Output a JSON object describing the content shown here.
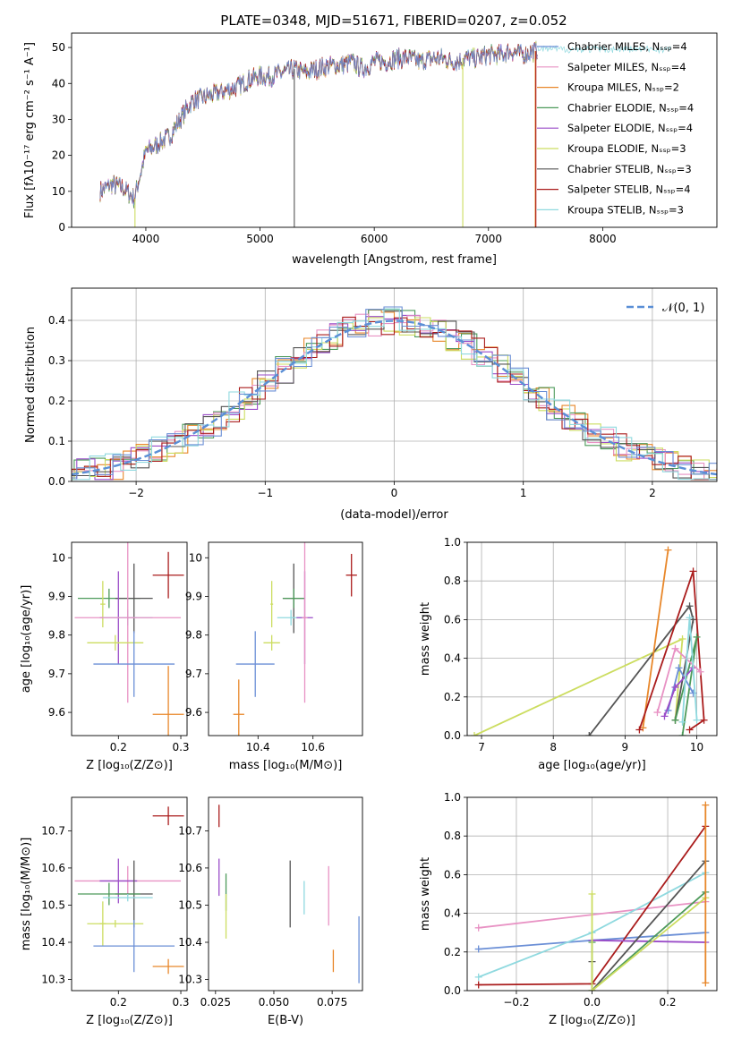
{
  "title": "PLATE=0348, MJD=51671, FIBERID=0207, z=0.052",
  "palette": {
    "c0": "#6b8fd6",
    "c1": "#e8872a",
    "c2": "#4d9a5a",
    "c3": "#9a4cc8",
    "c4": "#e892c4",
    "c5": "#ccdd60",
    "c6": "#555555",
    "c7": "#aa1c1c",
    "c8": "#8fd9df"
  },
  "chart_data": [
    {
      "id": "spectrum",
      "type": "line",
      "xlabel": "wavelength [Angstrom, rest frame]",
      "ylabel": "Flux [fλ10⁻¹⁷ erg cm⁻² s⁻¹ A⁻¹]",
      "xlim": [
        3350,
        9000
      ],
      "ylim": [
        0,
        54
      ],
      "xticks": [
        "4000",
        "5000",
        "6000",
        "7000",
        "8000"
      ],
      "yticks": [
        "0",
        "10",
        "20",
        "30",
        "40",
        "50"
      ],
      "legend_position": "upper-right",
      "continuum": {
        "x": [
          3600,
          3700,
          3800,
          3900,
          4000,
          4100,
          4200,
          4300,
          4400,
          4500,
          4600,
          4700,
          4800,
          4900,
          5000,
          5100,
          5200,
          5300,
          5400,
          5500,
          5600,
          5700,
          5800,
          5900,
          6000,
          6100,
          6200,
          6300,
          6400,
          6500,
          6600,
          6700,
          6800,
          6900,
          7000,
          7100,
          7200,
          7300,
          7400
        ],
        "y": [
          10,
          12,
          11,
          8,
          21,
          23,
          25,
          30,
          35,
          36,
          37,
          38,
          39,
          41,
          42,
          42,
          43,
          44,
          43,
          44,
          45,
          45,
          46,
          44,
          46,
          46,
          47,
          47,
          46,
          47,
          47,
          46,
          47,
          47,
          48,
          48,
          49,
          48,
          49
        ]
      },
      "series": [
        {
          "name": "Chabrier MILES, Nₛₛₚ=4",
          "color_key": "c0"
        },
        {
          "name": "Salpeter MILES, Nₛₛₚ=4",
          "color_key": "c4"
        },
        {
          "name": "Kroupa MILES, Nₛₛₚ=2",
          "color_key": "c1"
        },
        {
          "name": "Chabrier ELODIE, Nₛₛₚ=4",
          "color_key": "c2"
        },
        {
          "name": "Salpeter ELODIE, Nₛₛₚ=4",
          "color_key": "c3"
        },
        {
          "name": "Kroupa ELODIE, Nₛₛₚ=3",
          "color_key": "c5"
        },
        {
          "name": "Chabrier STELIB, Nₛₛₚ=3",
          "color_key": "c6"
        },
        {
          "name": "Salpeter STELIB, Nₛₛₚ=4",
          "color_key": "c7"
        },
        {
          "name": "Kroupa STELIB, Nₛₛₚ=3",
          "color_key": "c8"
        }
      ]
    },
    {
      "id": "residuals",
      "type": "line",
      "xlabel": "(data-model)/error",
      "ylabel": "Normed distribution",
      "xlim": [
        -2.5,
        2.5
      ],
      "ylim": [
        0,
        0.48
      ],
      "xticks": [
        -2,
        -1,
        0,
        1,
        2
      ],
      "xtick_labels": [
        "−2",
        "−1",
        "0",
        "1",
        "2"
      ],
      "yticks": [
        0.0,
        0.1,
        0.2,
        0.3,
        0.4
      ],
      "ytick_labels": [
        "0.0",
        "0.1",
        "0.2",
        "0.3",
        "0.4"
      ],
      "grid": true,
      "gaussian_label": "𝒩(0, 1)",
      "legend_position": "upper-right"
    },
    {
      "id": "age_vs_Z",
      "type": "scatter",
      "xlabel": "Z [log₁₀(Z/Z⊙)]",
      "ylabel": "age  [log₁₀(age/yr)]",
      "xlim": [
        0.125,
        0.31
      ],
      "ylim": [
        9.54,
        10.04
      ],
      "xticks": [
        0.2,
        0.3
      ],
      "yticks": [
        9.6,
        9.7,
        9.8,
        9.9,
        10.0
      ],
      "points": [
        {
          "c": "c7",
          "x": 0.28,
          "y": 9.955,
          "xe": 0.025,
          "ye": 0.06
        },
        {
          "c": "c2",
          "x": 0.185,
          "y": 9.895,
          "xe": 0.05,
          "ye": 0.025
        },
        {
          "c": "c6",
          "x": 0.225,
          "y": 9.895,
          "xe": 0.03,
          "ye": 0.09
        },
        {
          "c": "c5",
          "x": 0.175,
          "y": 9.88,
          "xe": 0.004,
          "ye": 0.06
        },
        {
          "c": "c3",
          "x": 0.2,
          "y": 9.845,
          "xe": 0.03,
          "ye": 0.12
        },
        {
          "c": "c8",
          "x": 0.215,
          "y": 9.845,
          "xe": 0.04,
          "ye": 0.02
        },
        {
          "c": "c4",
          "x": 0.215,
          "y": 9.845,
          "xe": 0.085,
          "ye": 0.22
        },
        {
          "c": "c5",
          "x": 0.195,
          "y": 9.78,
          "xe": 0.045,
          "ye": 0.02
        },
        {
          "c": "c0",
          "x": 0.225,
          "y": 9.725,
          "xe": 0.065,
          "ye": 0.085
        },
        {
          "c": "c1",
          "x": 0.28,
          "y": 9.595,
          "xe": 0.025,
          "ye": 0.125
        }
      ]
    },
    {
      "id": "age_vs_mass",
      "type": "scatter",
      "xlabel": "mass [log₁₀(M/M⊙)]",
      "ylabel": "",
      "xlim": [
        10.22,
        10.78
      ],
      "ylim": [
        9.54,
        10.04
      ],
      "xticks": [
        10.4,
        10.6
      ],
      "yticks": [
        9.6,
        9.7,
        9.8,
        9.9,
        10.0
      ],
      "points": [
        {
          "c": "c7",
          "x": 10.74,
          "y": 9.955,
          "xe": 0.02,
          "ye": 0.055
        },
        {
          "c": "c6",
          "x": 10.53,
          "y": 9.895,
          "xe": 0.04,
          "ye": 0.09
        },
        {
          "c": "c2",
          "x": 10.53,
          "y": 9.895,
          "xe": 0.04,
          "ye": 0.025
        },
        {
          "c": "c5",
          "x": 10.45,
          "y": 9.88,
          "xe": 0.005,
          "ye": 0.06
        },
        {
          "c": "c8",
          "x": 10.52,
          "y": 9.845,
          "xe": 0.05,
          "ye": 0.02
        },
        {
          "c": "c3",
          "x": 10.57,
          "y": 9.845,
          "xe": 0.03,
          "ye": 0.12
        },
        {
          "c": "c4",
          "x": 10.57,
          "y": 9.845,
          "xe": 0.01,
          "ye": 0.22
        },
        {
          "c": "c5",
          "x": 10.45,
          "y": 9.78,
          "xe": 0.03,
          "ye": 0.02
        },
        {
          "c": "c0",
          "x": 10.39,
          "y": 9.725,
          "xe": 0.07,
          "ye": 0.085
        },
        {
          "c": "c1",
          "x": 10.33,
          "y": 9.595,
          "xe": 0.02,
          "ye": 0.09
        }
      ]
    },
    {
      "id": "weight_vs_age",
      "type": "line",
      "xlabel": "age  [log₁₀(age/yr)]",
      "ylabel": "mass weight",
      "xlim": [
        6.8,
        10.28
      ],
      "ylim": [
        0,
        1.0
      ],
      "xticks": [
        7,
        8,
        9,
        10
      ],
      "yticks": [
        0.0,
        0.2,
        0.4,
        0.6,
        0.8,
        1.0
      ],
      "ytick_labels": [
        "0.0",
        "0.2",
        "0.4",
        "0.6",
        "0.8",
        "1.0"
      ],
      "grid": true,
      "series": [
        {
          "c": "c5",
          "x": [
            6.9,
            9.8,
            9.7
          ],
          "y": [
            0.0,
            0.5,
            0.08
          ]
        },
        {
          "c": "c6",
          "x": [
            8.5,
            9.9,
            9.95,
            9.7
          ],
          "y": [
            0.0,
            0.67,
            0.6,
            0.08
          ]
        },
        {
          "c": "c1",
          "x": [
            9.25,
            9.6
          ],
          "y": [
            0.04,
            0.96
          ]
        },
        {
          "c": "c7",
          "x": [
            9.2,
            9.95,
            10.1,
            9.9
          ],
          "y": [
            0.03,
            0.85,
            0.08,
            0.03
          ]
        },
        {
          "c": "c2",
          "x": [
            9.8,
            10.0,
            9.7
          ],
          "y": [
            0.0,
            0.51,
            0.08
          ]
        },
        {
          "c": "c0",
          "x": [
            9.6,
            9.75,
            9.95
          ],
          "y": [
            0.13,
            0.35,
            0.22
          ]
        },
        {
          "c": "c3",
          "x": [
            9.55,
            9.7,
            9.95
          ],
          "y": [
            0.1,
            0.25,
            0.35
          ]
        },
        {
          "c": "c4",
          "x": [
            9.45,
            9.7,
            10.05
          ],
          "y": [
            0.12,
            0.45,
            0.33
          ]
        },
        {
          "c": "c8",
          "x": [
            9.8,
            9.9,
            10.0
          ],
          "y": [
            0.07,
            0.61,
            0.08
          ]
        }
      ]
    },
    {
      "id": "mass_vs_Z",
      "type": "scatter",
      "xlabel": "Z [log₁₀(Z/Z⊙)]",
      "ylabel": "mass [log₁₀(M/M⊙)]",
      "xlim": [
        0.125,
        0.31
      ],
      "ylim": [
        10.27,
        10.79
      ],
      "xticks": [
        0.2,
        0.3
      ],
      "yticks": [
        10.3,
        10.4,
        10.5,
        10.6,
        10.7
      ],
      "points": [
        {
          "c": "c7",
          "x": 0.28,
          "y": 10.74,
          "xe": 0.025,
          "ye": 0.025
        },
        {
          "c": "c4",
          "x": 0.215,
          "y": 10.565,
          "xe": 0.085,
          "ye": 0.04
        },
        {
          "c": "c3",
          "x": 0.2,
          "y": 10.565,
          "xe": 0.03,
          "ye": 0.06
        },
        {
          "c": "c6",
          "x": 0.225,
          "y": 10.53,
          "xe": 0.03,
          "ye": 0.09
        },
        {
          "c": "c2",
          "x": 0.185,
          "y": 10.53,
          "xe": 0.05,
          "ye": 0.03
        },
        {
          "c": "c8",
          "x": 0.215,
          "y": 10.52,
          "xe": 0.04,
          "ye": 0.01
        },
        {
          "c": "c5",
          "x": 0.175,
          "y": 10.45,
          "xe": 0.005,
          "ye": 0.06
        },
        {
          "c": "c5",
          "x": 0.195,
          "y": 10.45,
          "xe": 0.045,
          "ye": 0.01
        },
        {
          "c": "c0",
          "x": 0.225,
          "y": 10.39,
          "xe": 0.065,
          "ye": 0.07
        },
        {
          "c": "c1",
          "x": 0.28,
          "y": 10.335,
          "xe": 0.025,
          "ye": 0.02
        }
      ]
    },
    {
      "id": "mass_vs_ebv",
      "type": "scatter",
      "xlabel": "E(B-V)",
      "ylabel": "",
      "xlim": [
        0.022,
        0.088
      ],
      "ylim": [
        10.27,
        10.79
      ],
      "xticks": [
        0.025,
        0.05,
        0.075
      ],
      "xtick_labels": [
        "0.025",
        "0.050",
        "0.075"
      ],
      "yticks": [
        10.3,
        10.4,
        10.5,
        10.6,
        10.7
      ],
      "points": [
        {
          "c": "c7",
          "x": 0.0265,
          "y": 10.74,
          "ye": 0.03
        },
        {
          "c": "c3",
          "x": 0.0265,
          "y": 10.575,
          "ye": 0.05
        },
        {
          "c": "c2",
          "x": 0.0295,
          "y": 10.535,
          "ye": 0.05
        },
        {
          "c": "c5",
          "x": 0.0295,
          "y": 10.47,
          "ye": 0.06
        },
        {
          "c": "c6",
          "x": 0.057,
          "y": 10.53,
          "ye": 0.09
        },
        {
          "c": "c8",
          "x": 0.063,
          "y": 10.52,
          "ye": 0.045
        },
        {
          "c": "c4",
          "x": 0.0735,
          "y": 10.525,
          "ye": 0.08
        },
        {
          "c": "c1",
          "x": 0.0755,
          "y": 10.35,
          "ye": 0.03
        },
        {
          "c": "c0",
          "x": 0.0865,
          "y": 10.38,
          "ye": 0.09
        }
      ]
    },
    {
      "id": "weight_vs_Z",
      "type": "line",
      "xlabel": "Z [log₁₀(Z/Z⊙)]",
      "ylabel": "mass weight",
      "xlim": [
        -0.33,
        0.33
      ],
      "ylim": [
        0,
        1.0
      ],
      "xticks": [
        -0.2,
        0.0,
        0.2
      ],
      "xtick_labels": [
        "−0.2",
        "0.0",
        "0.2"
      ],
      "yticks": [
        0.0,
        0.2,
        0.4,
        0.6,
        0.8,
        1.0
      ],
      "ytick_labels": [
        "0.0",
        "0.2",
        "0.4",
        "0.6",
        "0.8",
        "1.0"
      ],
      "grid": true,
      "series": [
        {
          "c": "c4",
          "x": [
            -0.3,
            0.3
          ],
          "y": [
            0.325,
            0.46
          ]
        },
        {
          "c": "c0",
          "x": [
            -0.3,
            0.0,
            0.3
          ],
          "y": [
            0.215,
            0.26,
            0.3
          ]
        },
        {
          "c": "c8",
          "x": [
            -0.3,
            0.0,
            0.3
          ],
          "y": [
            0.07,
            0.3,
            0.61
          ]
        },
        {
          "c": "c7",
          "x": [
            -0.3,
            0.0,
            0.3
          ],
          "y": [
            0.03,
            0.035,
            0.85
          ]
        },
        {
          "c": "c3",
          "x": [
            0.0,
            0.3
          ],
          "y": [
            0.26,
            0.25
          ]
        },
        {
          "c": "c6",
          "x": [
            0.0,
            0.0,
            0.3
          ],
          "y": [
            0.15,
            0.0,
            0.67
          ]
        },
        {
          "c": "c2",
          "x": [
            0.0,
            0.0,
            0.3
          ],
          "y": [
            0.25,
            0.0,
            0.51
          ]
        },
        {
          "c": "c5",
          "x": [
            0.0,
            0.0,
            0.3
          ],
          "y": [
            0.5,
            0.0,
            0.48
          ]
        },
        {
          "c": "c1",
          "x": [
            0.3,
            0.3
          ],
          "y": [
            0.04,
            0.96
          ]
        }
      ]
    }
  ]
}
